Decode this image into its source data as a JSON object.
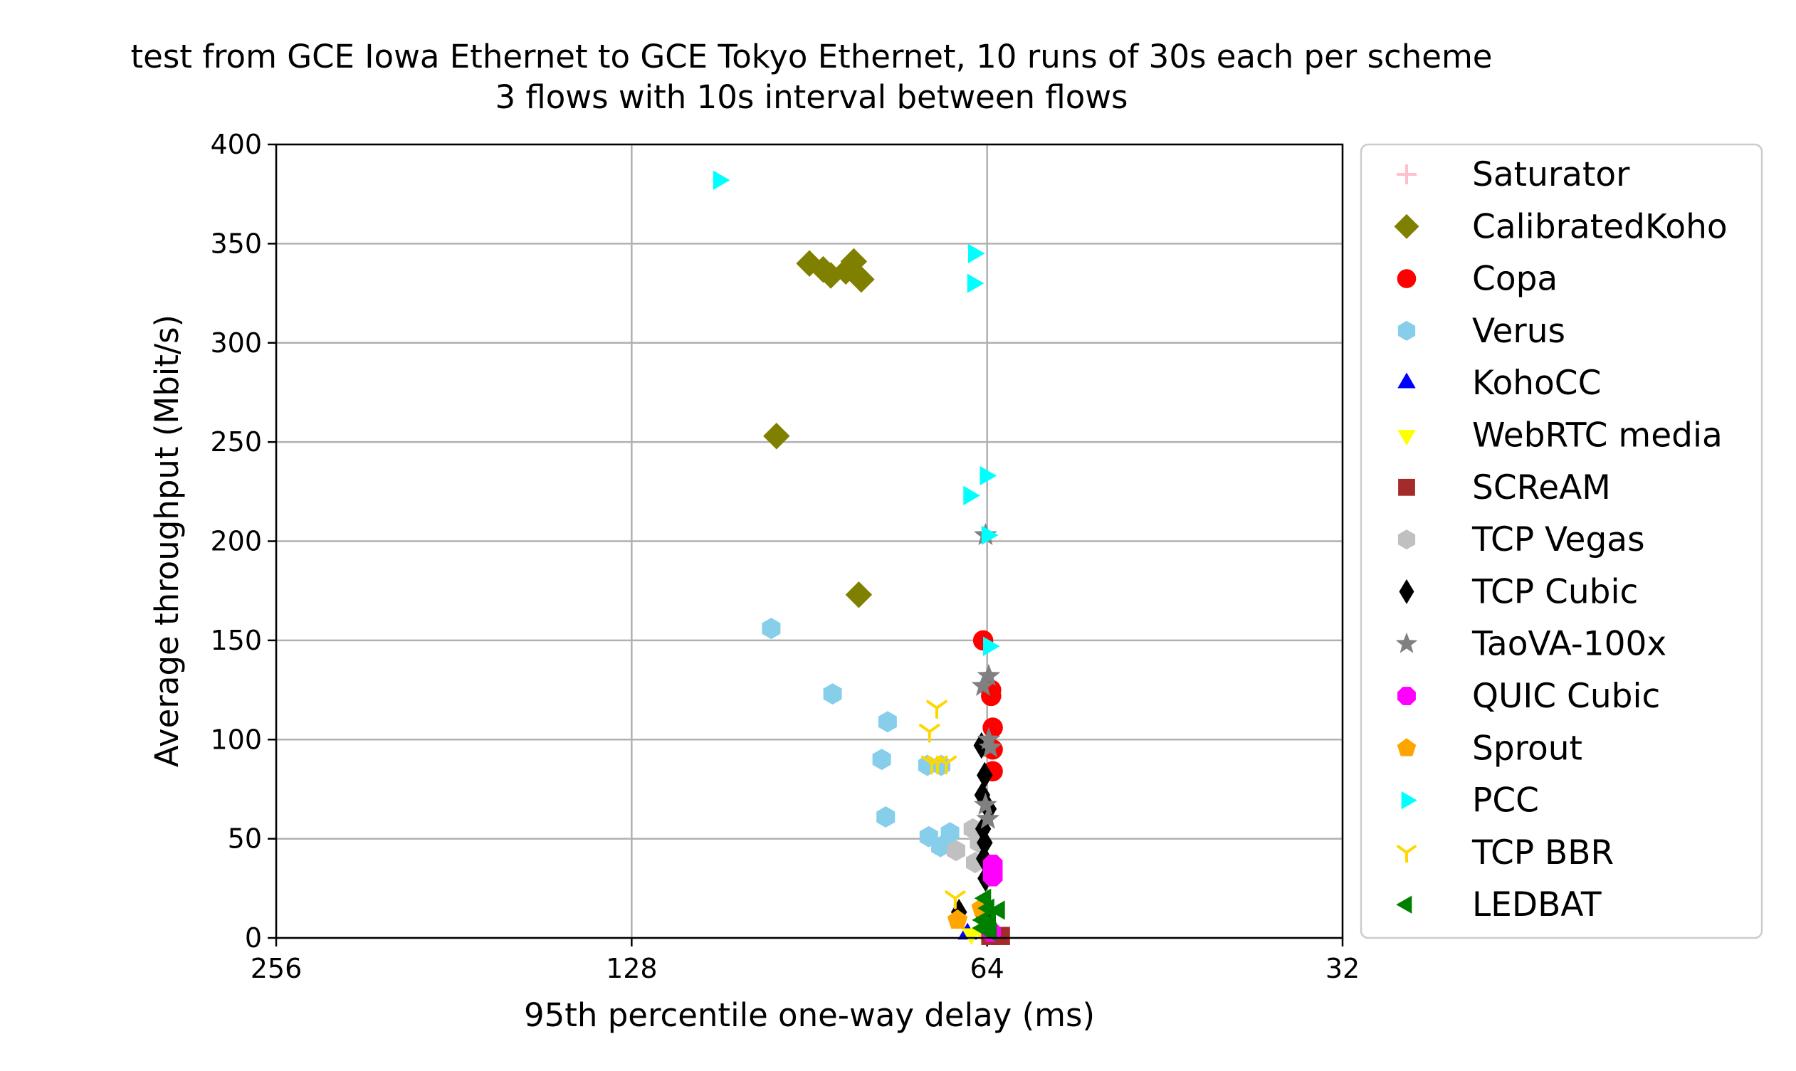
{
  "chart_data": {
    "type": "scatter",
    "title_line1": "test from GCE Iowa Ethernet to GCE Tokyo Ethernet, 10 runs of 30s each per scheme",
    "title_line2": "3 flows with 10s interval between flows",
    "xlabel": "95th percentile one-way delay (ms)",
    "ylabel": "Average throughput (Mbit/s)",
    "x_scale": "log2-inverted",
    "xlim": [
      256,
      32
    ],
    "ylim": [
      0,
      400
    ],
    "x_ticks": [
      "256",
      "128",
      "64",
      "32"
    ],
    "y_ticks": [
      "0",
      "50",
      "100",
      "150",
      "200",
      "250",
      "300",
      "350",
      "400"
    ],
    "grid": true,
    "legend_position": "outside-right",
    "series": [
      {
        "name": "Saturator",
        "marker": "plus",
        "color": "#ffc0cb",
        "points": []
      },
      {
        "name": "CalibratedKoho",
        "marker": "diamond",
        "color": "#808000",
        "points": [
          [
            90.5,
            340
          ],
          [
            88.1,
            337
          ],
          [
            86.8,
            334
          ],
          [
            84.3,
            336
          ],
          [
            83.0,
            341
          ],
          [
            81.8,
            332
          ],
          [
            96.5,
            253
          ],
          [
            82.2,
            173
          ]
        ]
      },
      {
        "name": "Copa",
        "marker": "circle",
        "color": "#ff0000",
        "points": [
          [
            64.5,
            150
          ],
          [
            63.5,
            125
          ],
          [
            63.5,
            122
          ],
          [
            63.3,
            106
          ],
          [
            63.3,
            95
          ],
          [
            63.3,
            84
          ]
        ]
      },
      {
        "name": "Verus",
        "marker": "hexagon",
        "color": "#87ceeb",
        "points": [
          [
            97.5,
            156
          ],
          [
            86.5,
            123
          ],
          [
            77.7,
            109
          ],
          [
            78.6,
            90
          ],
          [
            71.9,
            87
          ],
          [
            70.0,
            87
          ],
          [
            78.0,
            61
          ],
          [
            71.7,
            51
          ],
          [
            68.8,
            53
          ],
          [
            70.1,
            46
          ]
        ]
      },
      {
        "name": "KohoCC",
        "marker": "triangle-up",
        "color": "#0000ff",
        "points": [
          [
            66.5,
            2
          ]
        ]
      },
      {
        "name": "WebRTC media",
        "marker": "triangle-down",
        "color": "#ffff00",
        "points": [
          [
            66.0,
            2
          ],
          [
            64.6,
            3
          ]
        ]
      },
      {
        "name": "SCReAM",
        "marker": "square",
        "color": "#a52a2a",
        "points": [
          [
            62.3,
            1
          ],
          [
            63.6,
            1
          ]
        ]
      },
      {
        "name": "TCP Vegas",
        "marker": "hexagon",
        "color": "#c0c0c0",
        "points": [
          [
            68.0,
            44
          ],
          [
            65.5,
            38
          ],
          [
            65.0,
            48
          ],
          [
            65.8,
            55
          ]
        ]
      },
      {
        "name": "TCP Cubic",
        "marker": "thin-diamond",
        "color": "#000000",
        "points": [
          [
            64.7,
            97
          ],
          [
            64.3,
            82
          ],
          [
            64.6,
            72
          ],
          [
            63.8,
            65
          ],
          [
            64.5,
            55
          ],
          [
            64.3,
            48
          ],
          [
            64.4,
            40
          ],
          [
            64.2,
            30
          ],
          [
            67.6,
            13
          ],
          [
            64.6,
            12
          ],
          [
            64.0,
            8
          ]
        ]
      },
      {
        "name": "TaoVA-100x",
        "marker": "star",
        "color": "#808080",
        "points": [
          [
            64.2,
            203
          ],
          [
            63.8,
            132
          ],
          [
            64.5,
            127
          ],
          [
            63.8,
            100
          ],
          [
            63.6,
            96
          ],
          [
            64.2,
            67
          ],
          [
            63.9,
            60
          ]
        ]
      },
      {
        "name": "QUIC Cubic",
        "marker": "octagon",
        "color": "#ff00ff",
        "points": [
          [
            63.3,
            37
          ],
          [
            63.3,
            31
          ],
          [
            63.3,
            34
          ],
          [
            63.5,
            3
          ]
        ]
      },
      {
        "name": "Sprout",
        "marker": "pentagon",
        "color": "#ffa500",
        "points": [
          [
            67.8,
            9
          ],
          [
            64.7,
            15
          ]
        ]
      },
      {
        "name": "PCC",
        "marker": "triangle-right",
        "color": "#00ffff",
        "points": [
          [
            108.0,
            382
          ],
          [
            65.7,
            345
          ],
          [
            65.8,
            330
          ],
          [
            64.2,
            233
          ],
          [
            66.3,
            223
          ],
          [
            64.0,
            203
          ],
          [
            63.8,
            147
          ]
        ]
      },
      {
        "name": "TCP BBR",
        "marker": "tri-down",
        "color": "#ffd700",
        "points": [
          [
            70.6,
            116
          ],
          [
            71.6,
            104
          ],
          [
            71.3,
            88
          ],
          [
            70.5,
            88
          ],
          [
            69.3,
            88
          ],
          [
            68.1,
            20
          ]
        ]
      },
      {
        "name": "LEDBAT",
        "marker": "triangle-left",
        "color": "#008000",
        "points": [
          [
            64.2,
            20
          ],
          [
            62.5,
            14
          ],
          [
            63.8,
            15
          ],
          [
            64.5,
            9
          ],
          [
            63.6,
            8
          ],
          [
            64.5,
            5
          ],
          [
            63.5,
            3
          ]
        ]
      }
    ]
  }
}
